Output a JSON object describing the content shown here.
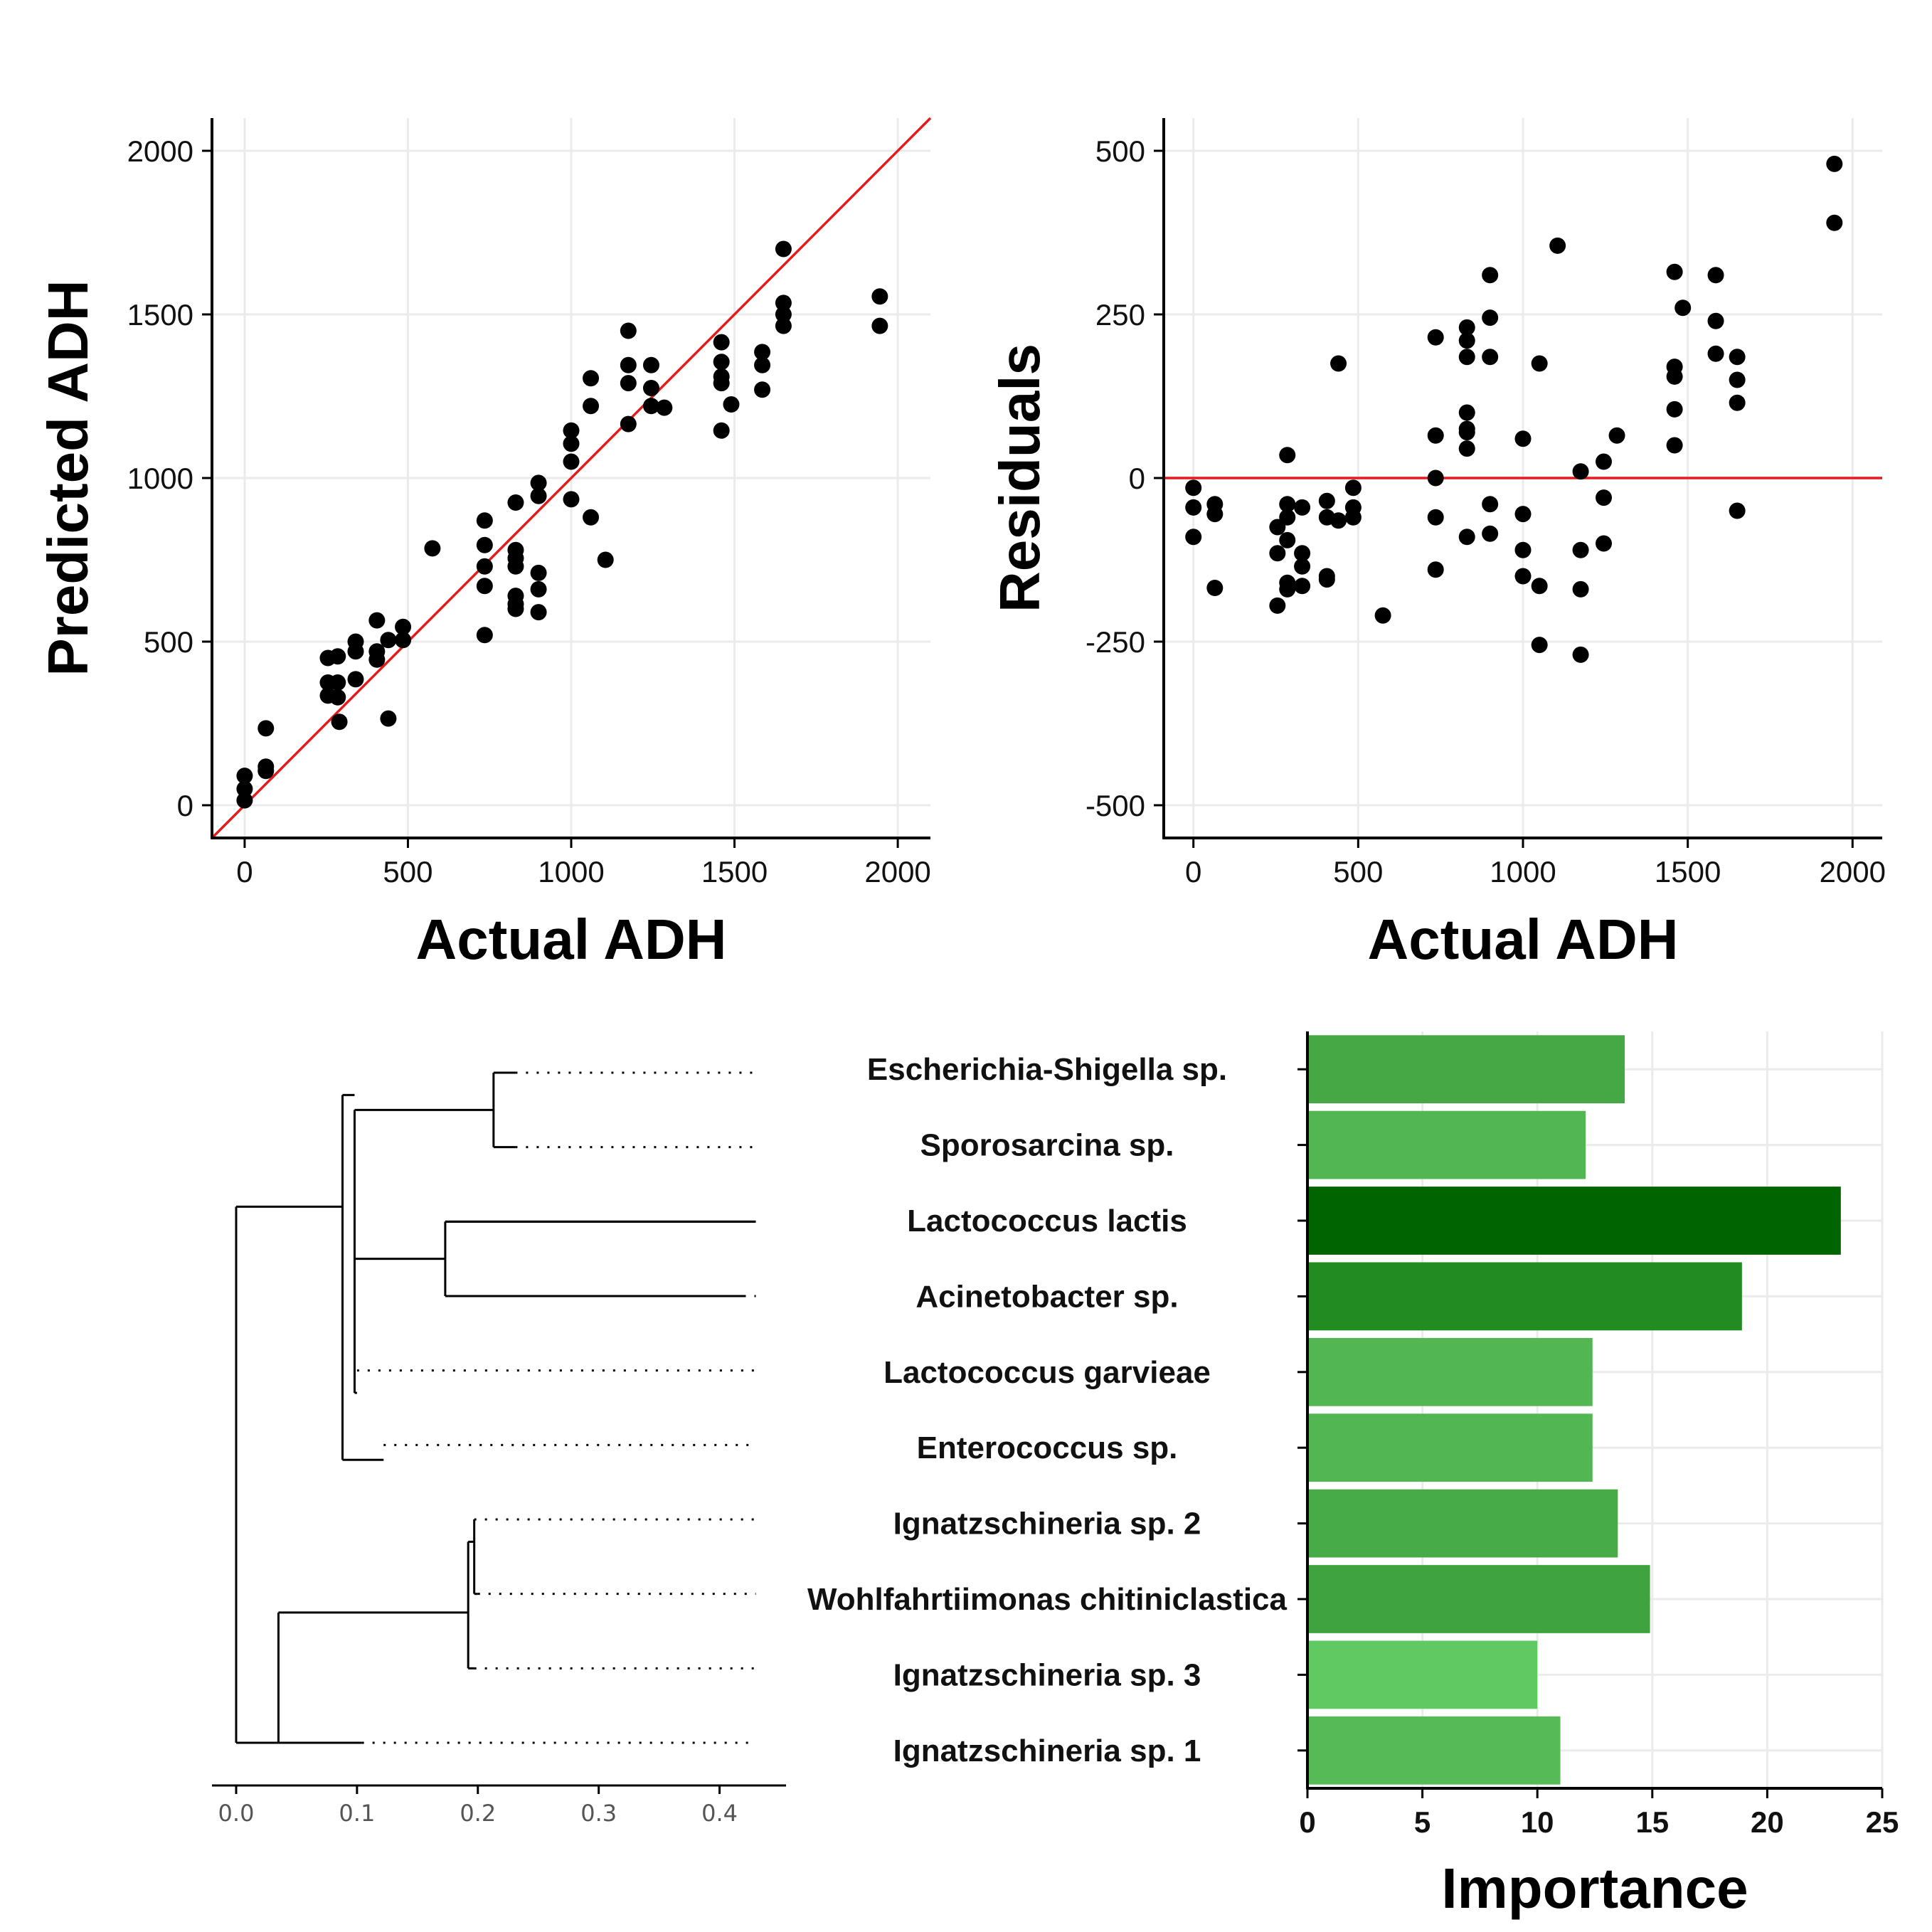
{
  "chart_data": [
    {
      "type": "scatter",
      "id": "pred",
      "xlabel": "Actual ADH",
      "ylabel": "Predicted ADH",
      "xlim": [
        -100,
        2100
      ],
      "ylim": [
        -100,
        2100
      ],
      "xticks": [
        0,
        500,
        1000,
        1500,
        2000
      ],
      "yticks": [
        0,
        500,
        1000,
        1500,
        2000
      ],
      "reference_line": "y = x",
      "reference_color": "#e41a1c",
      "grid": true,
      "points": [
        [
          0,
          90
        ],
        [
          0,
          50
        ],
        [
          0,
          15
        ],
        [
          65,
          235
        ],
        [
          65,
          118
        ],
        [
          65,
          105
        ],
        [
          255,
          450
        ],
        [
          255,
          375
        ],
        [
          255,
          335
        ],
        [
          285,
          455
        ],
        [
          285,
          375
        ],
        [
          285,
          330
        ],
        [
          290,
          255
        ],
        [
          340,
          500
        ],
        [
          340,
          470
        ],
        [
          340,
          385
        ],
        [
          405,
          565
        ],
        [
          405,
          470
        ],
        [
          405,
          445
        ],
        [
          440,
          265
        ],
        [
          440,
          505
        ],
        [
          485,
          545
        ],
        [
          485,
          505
        ],
        [
          575,
          785
        ],
        [
          735,
          870
        ],
        [
          735,
          795
        ],
        [
          735,
          730
        ],
        [
          735,
          670
        ],
        [
          735,
          520
        ],
        [
          830,
          925
        ],
        [
          830,
          780
        ],
        [
          830,
          755
        ],
        [
          830,
          730
        ],
        [
          830,
          640
        ],
        [
          830,
          615
        ],
        [
          830,
          600
        ],
        [
          900,
          985
        ],
        [
          900,
          945
        ],
        [
          900,
          710
        ],
        [
          900,
          660
        ],
        [
          900,
          590
        ],
        [
          1000,
          1145
        ],
        [
          1000,
          1105
        ],
        [
          1000,
          1050
        ],
        [
          1000,
          935
        ],
        [
          1060,
          1305
        ],
        [
          1060,
          1220
        ],
        [
          1060,
          880
        ],
        [
          1105,
          750
        ],
        [
          1175,
          1450
        ],
        [
          1175,
          1345
        ],
        [
          1175,
          1290
        ],
        [
          1175,
          1165
        ],
        [
          1245,
          1345
        ],
        [
          1245,
          1275
        ],
        [
          1245,
          1220
        ],
        [
          1285,
          1215
        ],
        [
          1460,
          1415
        ],
        [
          1460,
          1355
        ],
        [
          1460,
          1310
        ],
        [
          1460,
          1290
        ],
        [
          1460,
          1145
        ],
        [
          1490,
          1225
        ],
        [
          1585,
          1385
        ],
        [
          1585,
          1345
        ],
        [
          1585,
          1270
        ],
        [
          1650,
          1700
        ],
        [
          1650,
          1535
        ],
        [
          1650,
          1500
        ],
        [
          1650,
          1465
        ],
        [
          1945,
          1555
        ],
        [
          1945,
          1465
        ]
      ]
    },
    {
      "type": "scatter",
      "id": "resid",
      "xlabel": "Actual ADH",
      "ylabel": "Residuals",
      "xlim": [
        -90,
        2090
      ],
      "ylim": [
        -550,
        550
      ],
      "xticks": [
        0,
        500,
        1000,
        1500,
        2000
      ],
      "yticks": [
        -500,
        -250,
        0,
        250,
        500
      ],
      "reference_line": "y = 0",
      "reference_color": "#e41a1c",
      "grid": true,
      "points": [
        [
          0,
          -15
        ],
        [
          0,
          -45
        ],
        [
          0,
          -90
        ],
        [
          65,
          -40
        ],
        [
          65,
          -55
        ],
        [
          65,
          -168
        ],
        [
          255,
          -75
        ],
        [
          255,
          -115
        ],
        [
          255,
          -195
        ],
        [
          285,
          35
        ],
        [
          285,
          -40
        ],
        [
          285,
          -60
        ],
        [
          285,
          -95
        ],
        [
          285,
          -160
        ],
        [
          285,
          -170
        ],
        [
          330,
          -45
        ],
        [
          330,
          -115
        ],
        [
          330,
          -135
        ],
        [
          330,
          -165
        ],
        [
          405,
          -35
        ],
        [
          405,
          -60
        ],
        [
          405,
          -150
        ],
        [
          405,
          -155
        ],
        [
          440,
          175
        ],
        [
          440,
          -65
        ],
        [
          485,
          -15
        ],
        [
          485,
          -45
        ],
        [
          485,
          -60
        ],
        [
          575,
          -210
        ],
        [
          735,
          215
        ],
        [
          735,
          65
        ],
        [
          735,
          0
        ],
        [
          735,
          -60
        ],
        [
          735,
          -140
        ],
        [
          830,
          230
        ],
        [
          830,
          210
        ],
        [
          830,
          185
        ],
        [
          830,
          100
        ],
        [
          830,
          75
        ],
        [
          830,
          70
        ],
        [
          830,
          45
        ],
        [
          830,
          -90
        ],
        [
          900,
          310
        ],
        [
          900,
          245
        ],
        [
          900,
          185
        ],
        [
          900,
          -40
        ],
        [
          900,
          -85
        ],
        [
          1000,
          60
        ],
        [
          1000,
          -55
        ],
        [
          1000,
          -110
        ],
        [
          1000,
          -150
        ],
        [
          1050,
          175
        ],
        [
          1050,
          -165
        ],
        [
          1050,
          -255
        ],
        [
          1105,
          355
        ],
        [
          1175,
          10
        ],
        [
          1175,
          -110
        ],
        [
          1175,
          -170
        ],
        [
          1175,
          -270
        ],
        [
          1245,
          25
        ],
        [
          1245,
          -30
        ],
        [
          1245,
          -100
        ],
        [
          1285,
          65
        ],
        [
          1460,
          315
        ],
        [
          1460,
          170
        ],
        [
          1460,
          155
        ],
        [
          1460,
          105
        ],
        [
          1460,
          50
        ],
        [
          1485,
          260
        ],
        [
          1585,
          310
        ],
        [
          1585,
          240
        ],
        [
          1585,
          190
        ],
        [
          1650,
          185
        ],
        [
          1650,
          150
        ],
        [
          1650,
          115
        ],
        [
          1650,
          -50
        ],
        [
          1945,
          480
        ],
        [
          1945,
          390
        ]
      ]
    },
    {
      "type": "bar",
      "id": "imp",
      "orientation": "horizontal",
      "xlabel": "Importance",
      "xlim": [
        0,
        25
      ],
      "xticks": [
        0,
        5,
        10,
        15,
        20,
        25
      ],
      "grid": true,
      "categories": [
        "Escherichia-Shigella sp.",
        "Sporosarcina sp.",
        "Lactococcus lactis",
        "Acinetobacter sp.",
        "Lactococcus garvieae",
        "Enterococcus sp.",
        "Ignatzschineria sp. 2",
        "Wohlfahrtiimonas chitiniclastica",
        "Ignatzschineria sp. 3",
        "Ignatzschineria sp. 1"
      ],
      "values": [
        13.8,
        12.1,
        23.2,
        18.9,
        12.4,
        12.4,
        13.5,
        14.9,
        10.0,
        11.0
      ],
      "colors": [
        "#45a845",
        "#52b752",
        "#006400",
        "#228b22",
        "#52b752",
        "#52b752",
        "#47ac47",
        "#3fa43f",
        "#61c961",
        "#56bb56"
      ]
    },
    {
      "type": "dendrogram",
      "id": "dendro",
      "xlim": [
        -0.02,
        0.455
      ],
      "xticks": [
        0.0,
        0.1,
        0.2,
        0.3,
        0.4
      ],
      "xtick_labels": [
        "0.0",
        "0.1",
        "0.2",
        "0.3",
        "0.4"
      ],
      "leaf_extent": 0.43,
      "branches": [
        [
          0.0,
          0.088,
          1,
          2
        ],
        [
          0.0,
          0.035,
          3,
          4
        ],
        [
          0.088,
          0.098,
          5,
          6
        ],
        [
          0.088,
          0.122,
          7,
          8
        ],
        [
          0.098,
          0.098,
          9,
          10
        ],
        [
          0.098,
          0.098,
          11,
          12
        ],
        [
          0.098,
          0.213,
          13,
          14
        ],
        [
          0.098,
          0.173,
          15,
          16
        ],
        [
          0.213,
          0.213,
          17,
          18
        ],
        [
          0.035,
          0.192,
          19,
          20
        ],
        [
          0.035,
          0.104,
          21,
          22
        ],
        [
          0.192,
          0.197,
          23,
          24
        ]
      ],
      "leaves": [
        {
          "from": 0.231,
          "solid": false
        },
        {
          "from": 0.231,
          "solid": false
        },
        {
          "from": 0.43,
          "solid": true
        },
        {
          "from": 0.42,
          "solid": false
        },
        {
          "from": 0.1,
          "solid": false
        },
        {
          "from": 0.122,
          "solid": false
        },
        {
          "from": 0.197,
          "solid": false
        },
        {
          "from": 0.2,
          "solid": false
        },
        {
          "from": 0.197,
          "solid": false
        },
        {
          "from": 0.104,
          "solid": false
        }
      ],
      "nodes": [
        {
          "x": 0.0,
          "y0": 1.8,
          "y1": 9.0
        },
        {
          "x": 0.088,
          "y0": 0.3,
          "y1": 5.2
        },
        {
          "x": 0.098,
          "y0": 0.5,
          "y1": 4.3
        },
        {
          "x": 0.213,
          "y0": 0.0,
          "y1": 1.0
        },
        {
          "x": 0.173,
          "y0": 2.0,
          "y1": 3.0
        },
        {
          "x": 0.035,
          "y0": 7.25,
          "y1": 9.0
        },
        {
          "x": 0.192,
          "y0": 6.3,
          "y1": 8.0
        },
        {
          "x": 0.197,
          "y0": 6.0,
          "y1": 7.0
        }
      ]
    }
  ]
}
